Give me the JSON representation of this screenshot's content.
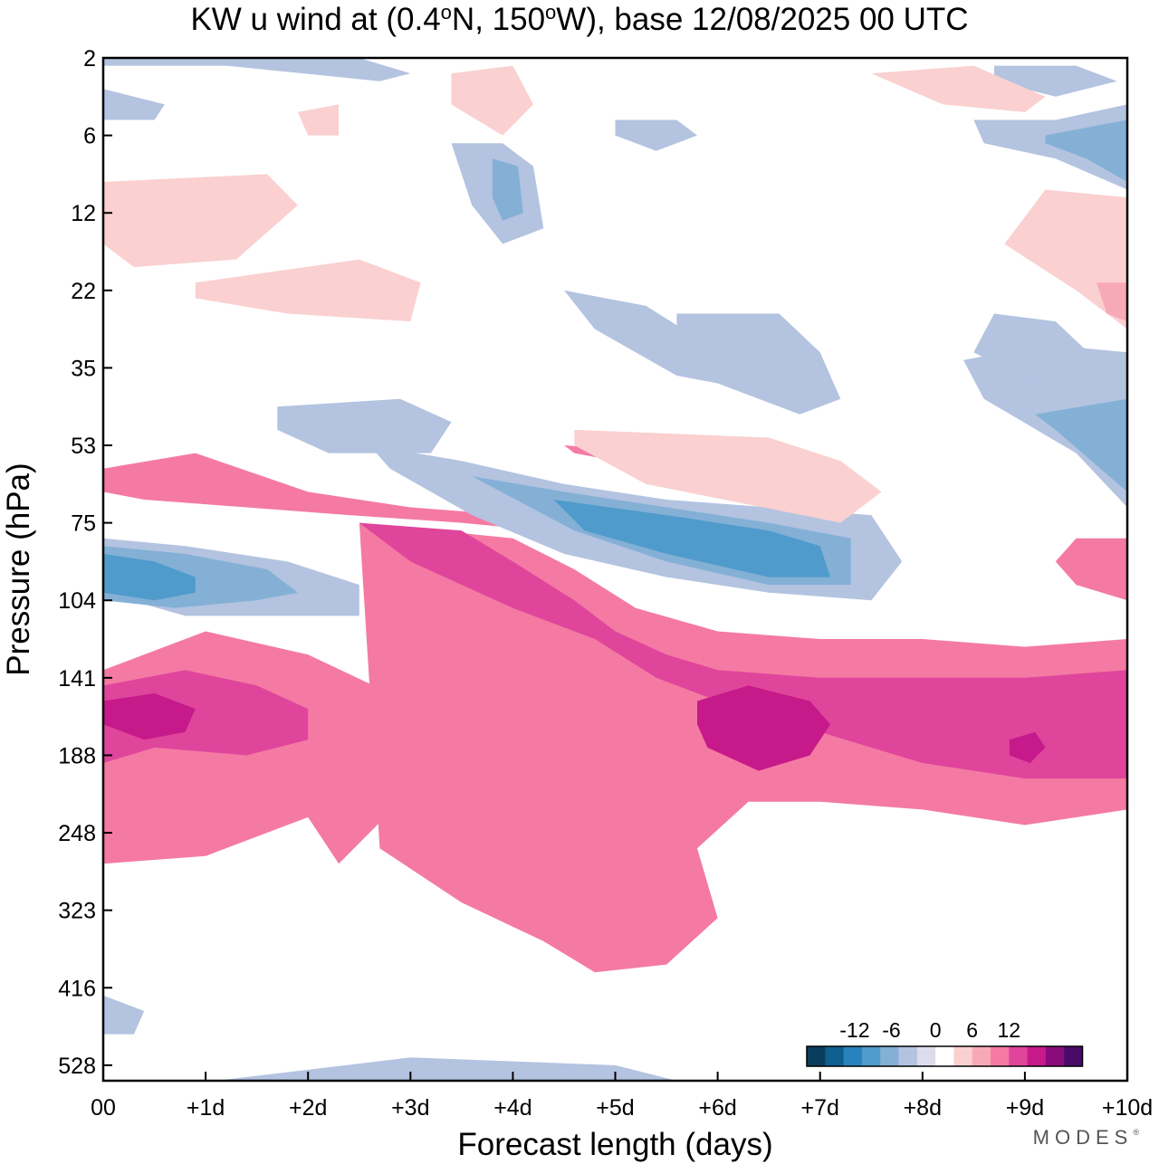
{
  "chart_data": {
    "type": "heatmap",
    "title_parts": {
      "prefix": "KW u wind at (0.4",
      "deg1": "o",
      "mid": "N, 150",
      "deg2": "o",
      "suffix": "W),  base 12/08/2025  00 UTC"
    },
    "xlabel": "Forecast length (days)",
    "ylabel": "Pressure (hPa)",
    "x_ticks": [
      "00",
      "+1d",
      "+2d",
      "+3d",
      "+4d",
      "+5d",
      "+6d",
      "+7d",
      "+8d",
      "+9d",
      "+10d"
    ],
    "y_ticks": [
      "2",
      "6",
      "12",
      "22",
      "35",
      "53",
      "75",
      "104",
      "141",
      "188",
      "248",
      "323",
      "416",
      "528"
    ],
    "xlim": [
      0,
      10
    ],
    "y_levels": 13.2,
    "levels": [
      -18,
      -15,
      -12,
      -9,
      -6,
      -3,
      0,
      3,
      6,
      9,
      12,
      15,
      18
    ],
    "colorbar": {
      "labels": [
        "-12",
        "-6",
        "0",
        "6",
        "12"
      ],
      "colors": [
        "#0a3d5c",
        "#0f5f8f",
        "#2a82bd",
        "#4f9bcb",
        "#84b0d6",
        "#b3c3e0",
        "#dcdcec",
        "#ffffff",
        "#fad0d0",
        "#f7a9b7",
        "#f47aa3",
        "#e0459c",
        "#c6198a",
        "#8a0c7c",
        "#4a0a6a"
      ]
    },
    "regions": [
      {
        "v": 9,
        "x": [
          0.0,
          1.0,
          2.0,
          2.8,
          2.9,
          2.3,
          2.0,
          1.0,
          0.0
        ],
        "y": [
          7.9,
          7.4,
          7.7,
          8.2,
          9.6,
          10.4,
          9.8,
          10.3,
          10.4
        ]
      },
      {
        "v": 9,
        "x": [
          2.5,
          4.0,
          4.6,
          5.2,
          6.0,
          7.0,
          8.0,
          9.0,
          10.0,
          10.0,
          9.0,
          8.0,
          7.0,
          6.3,
          5.8,
          6.0,
          5.5,
          4.8,
          4.3,
          3.5,
          2.7
        ],
        "y": [
          6.0,
          6.2,
          6.6,
          7.1,
          7.4,
          7.5,
          7.5,
          7.6,
          7.5,
          9.7,
          9.9,
          9.7,
          9.6,
          9.6,
          10.2,
          11.1,
          11.7,
          11.8,
          11.4,
          10.9,
          10.2
        ]
      },
      {
        "v": 12,
        "x": [
          2.5,
          3.5,
          4.0,
          4.6,
          5.0,
          5.5,
          6.0,
          7.0,
          8.0,
          9.0,
          10.0,
          10.0,
          9.0,
          8.0,
          7.0,
          6.0,
          5.4,
          4.8,
          4.0,
          3.0
        ],
        "y": [
          6.0,
          6.1,
          6.5,
          7.0,
          7.4,
          7.7,
          7.9,
          8.0,
          8.0,
          8.0,
          7.9,
          9.3,
          9.3,
          9.1,
          8.7,
          8.3,
          8.0,
          7.5,
          7.1,
          6.5
        ]
      },
      {
        "v": 12,
        "x": [
          0.0,
          0.8,
          1.5,
          2.0,
          2.0,
          1.4,
          0.5,
          0.0
        ],
        "y": [
          8.1,
          7.9,
          8.1,
          8.4,
          8.8,
          9.0,
          8.9,
          9.1
        ]
      },
      {
        "v": 15,
        "x": [
          0.0,
          0.5,
          0.9,
          0.8,
          0.4,
          0.0
        ],
        "y": [
          8.3,
          8.2,
          8.4,
          8.7,
          8.8,
          8.6
        ]
      },
      {
        "v": 15,
        "x": [
          5.8,
          6.3,
          6.9,
          7.1,
          6.9,
          6.4,
          5.9,
          5.8
        ],
        "y": [
          8.3,
          8.1,
          8.3,
          8.6,
          9.0,
          9.2,
          8.9,
          8.6
        ]
      },
      {
        "v": 15,
        "x": [
          8.85,
          9.1,
          9.2,
          9.05,
          8.85
        ],
        "y": [
          8.8,
          8.7,
          8.9,
          9.1,
          9.0
        ]
      },
      {
        "v": 9,
        "x": [
          0.0,
          0.9,
          2.0,
          3.0,
          4.0,
          5.0,
          7.0,
          7.4,
          6.2,
          5.2,
          4.3,
          3.5,
          2.4,
          1.4,
          0.4,
          0.0
        ],
        "y": [
          5.3,
          5.1,
          5.6,
          5.8,
          5.9,
          6.3,
          6.5,
          6.7,
          6.7,
          6.4,
          6.1,
          6.0,
          5.9,
          5.8,
          5.7,
          5.6
        ]
      },
      {
        "v": 9,
        "x": [
          4.5,
          5.5,
          6.5,
          7.3,
          7.0,
          6.0,
          5.0,
          4.6
        ],
        "y": [
          5.0,
          5.1,
          5.3,
          5.5,
          5.6,
          5.4,
          5.2,
          5.1
        ]
      },
      {
        "v": 9,
        "x": [
          9.5,
          10.0,
          10.0,
          9.5,
          9.3
        ],
        "y": [
          6.2,
          6.2,
          7.0,
          6.8,
          6.5
        ]
      },
      {
        "v": -3,
        "x": [
          2.6,
          3.5,
          4.5,
          5.5,
          6.5,
          7.5,
          7.8,
          7.5,
          6.5,
          5.5,
          4.5,
          3.6,
          2.8
        ],
        "y": [
          5.0,
          5.2,
          5.5,
          5.7,
          5.8,
          5.9,
          6.5,
          7.0,
          6.9,
          6.7,
          6.4,
          5.9,
          5.3
        ]
      },
      {
        "v": -6,
        "x": [
          3.6,
          4.5,
          5.5,
          6.5,
          7.3,
          7.3,
          6.5,
          5.5,
          4.6
        ],
        "y": [
          5.4,
          5.6,
          5.8,
          6.0,
          6.2,
          6.8,
          6.8,
          6.5,
          6.1
        ]
      },
      {
        "v": -9,
        "x": [
          4.4,
          5.5,
          6.5,
          7.0,
          7.1,
          6.5,
          5.5,
          4.7
        ],
        "y": [
          5.7,
          5.9,
          6.1,
          6.3,
          6.7,
          6.7,
          6.4,
          6.1
        ]
      },
      {
        "v": -3,
        "x": [
          0.0,
          0.8,
          1.8,
          2.5,
          2.5,
          1.8,
          0.8,
          0.0
        ],
        "y": [
          6.2,
          6.3,
          6.5,
          6.8,
          7.2,
          7.2,
          7.2,
          6.9
        ]
      },
      {
        "v": -6,
        "x": [
          0.0,
          0.8,
          1.6,
          1.9,
          1.5,
          0.7,
          0.0
        ],
        "y": [
          6.3,
          6.4,
          6.6,
          6.9,
          7.0,
          7.1,
          7.0
        ]
      },
      {
        "v": -9,
        "x": [
          0.0,
          0.5,
          0.9,
          0.9,
          0.5,
          0.0
        ],
        "y": [
          6.4,
          6.5,
          6.7,
          6.9,
          7.0,
          6.9
        ]
      },
      {
        "v": -3,
        "x": [
          1.7,
          2.9,
          3.4,
          3.2,
          2.2,
          1.7
        ],
        "y": [
          4.5,
          4.4,
          4.7,
          5.1,
          5.1,
          4.8
        ]
      },
      {
        "v": -3,
        "x": [
          4.5,
          5.3,
          5.9,
          6.0,
          5.6,
          4.8
        ],
        "y": [
          3.0,
          3.2,
          3.7,
          4.2,
          4.1,
          3.5
        ]
      },
      {
        "v": -3,
        "x": [
          5.6,
          6.6,
          7.0,
          7.2,
          6.8,
          6.0,
          5.6
        ],
        "y": [
          3.3,
          3.3,
          3.8,
          4.4,
          4.6,
          4.2,
          3.8
        ]
      },
      {
        "v": -3,
        "x": [
          8.4,
          9.2,
          10.0,
          10.0,
          9.5,
          8.6
        ],
        "y": [
          3.9,
          3.7,
          3.8,
          5.8,
          5.1,
          4.4
        ]
      },
      {
        "v": -6,
        "x": [
          9.1,
          10.0,
          10.0,
          9.3
        ],
        "y": [
          4.6,
          4.4,
          5.6,
          4.8
        ]
      },
      {
        "v": -3,
        "x": [
          3.4,
          3.9,
          4.2,
          4.3,
          3.9,
          3.6
        ],
        "y": [
          1.1,
          1.1,
          1.4,
          2.2,
          2.4,
          1.9
        ]
      },
      {
        "v": -6,
        "x": [
          3.8,
          4.05,
          4.1,
          3.9,
          3.8
        ],
        "y": [
          1.3,
          1.4,
          2.0,
          2.1,
          1.8
        ]
      },
      {
        "v": -3,
        "x": [
          8.5,
          9.3,
          10.0,
          10.0,
          9.3,
          8.6
        ],
        "y": [
          0.8,
          0.8,
          0.6,
          1.7,
          1.3,
          1.1
        ]
      },
      {
        "v": -6,
        "x": [
          9.2,
          9.6,
          10.0,
          10.0,
          9.6,
          9.2
        ],
        "y": [
          1.0,
          0.9,
          0.8,
          1.6,
          1.3,
          1.1
        ]
      },
      {
        "v": -3,
        "x": [
          0.0,
          2.5,
          3.0,
          2.7,
          1.2,
          0.0
        ],
        "y": [
          0.0,
          0.0,
          0.2,
          0.3,
          0.1,
          0.1
        ]
      },
      {
        "v": -3,
        "x": [
          8.7,
          9.5,
          9.9,
          9.3,
          8.7
        ],
        "y": [
          0.1,
          0.1,
          0.3,
          0.5,
          0.3
        ]
      },
      {
        "v": -3,
        "x": [
          5.0,
          5.6,
          5.8,
          5.4,
          5.0
        ],
        "y": [
          0.8,
          0.8,
          1.0,
          1.2,
          1.0
        ]
      },
      {
        "v": -3,
        "x": [
          0.0,
          0.6,
          0.5,
          0.0
        ],
        "y": [
          0.4,
          0.6,
          0.8,
          0.8
        ]
      },
      {
        "v": 3,
        "x": [
          0.0,
          1.6,
          1.9,
          1.3,
          0.3,
          0.0
        ],
        "y": [
          1.6,
          1.5,
          1.9,
          2.6,
          2.7,
          2.4
        ]
      },
      {
        "v": 3,
        "x": [
          0.9,
          2.5,
          3.1,
          3.0,
          1.8,
          0.9
        ],
        "y": [
          2.9,
          2.6,
          2.9,
          3.4,
          3.3,
          3.1
        ]
      },
      {
        "v": 3,
        "x": [
          9.2,
          10.0,
          10.0,
          9.5,
          8.8
        ],
        "y": [
          1.7,
          1.8,
          3.5,
          3.0,
          2.4
        ]
      },
      {
        "v": 6,
        "x": [
          9.7,
          10.0,
          10.0,
          9.8
        ],
        "y": [
          2.9,
          2.9,
          3.4,
          3.3
        ]
      },
      {
        "v": 3,
        "x": [
          3.4,
          4.0,
          4.2,
          3.9,
          3.4
        ],
        "y": [
          0.2,
          0.1,
          0.6,
          1.0,
          0.6
        ]
      },
      {
        "v": 3,
        "x": [
          1.9,
          2.3,
          2.3,
          2.0
        ],
        "y": [
          0.7,
          0.6,
          1.0,
          1.0
        ]
      },
      {
        "v": 3,
        "x": [
          4.6,
          6.5,
          7.2,
          7.6,
          7.2,
          5.3,
          4.6
        ],
        "y": [
          4.8,
          4.9,
          5.2,
          5.6,
          6.0,
          5.5,
          5.0
        ]
      },
      {
        "v": 3,
        "x": [
          7.5,
          8.5,
          9.2,
          9.0,
          8.2
        ],
        "y": [
          0.2,
          0.1,
          0.5,
          0.7,
          0.6
        ]
      },
      {
        "v": -3,
        "x": [
          8.7,
          9.3,
          9.7,
          9.1,
          8.5
        ],
        "y": [
          3.3,
          3.4,
          3.9,
          4.2,
          3.8
        ]
      },
      {
        "v": -3,
        "x": [
          0.0,
          0.4,
          0.3,
          0.0
        ],
        "y": [
          12.1,
          12.3,
          12.6,
          12.6
        ]
      },
      {
        "v": -3,
        "x": [
          1.1,
          3.0,
          5.0,
          5.6,
          1.1
        ],
        "y": [
          13.2,
          12.9,
          13.0,
          13.2,
          13.2
        ]
      }
    ]
  }
}
